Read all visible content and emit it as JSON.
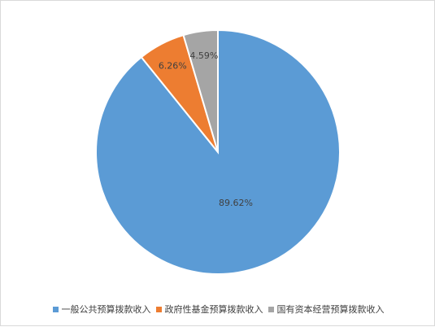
{
  "chart_data": {
    "type": "pie",
    "title": "",
    "slices": [
      {
        "label": "一般公共预算拨款收入",
        "value": 89.62,
        "value_label": "89.62%",
        "color": "#5B9BD5"
      },
      {
        "label": "政府性基金预算拨款收入",
        "value": 6.26,
        "value_label": "6.26%",
        "color": "#ED7D31"
      },
      {
        "label": "国有资本经营预算拨款收入",
        "value": 4.59,
        "value_label": "4.59%",
        "color": "#A5A5A5"
      }
    ],
    "legend_position": "bottom"
  }
}
